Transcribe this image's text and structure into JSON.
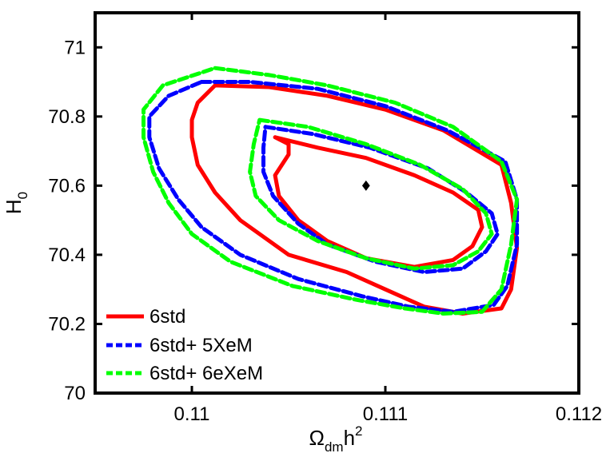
{
  "chart_data": {
    "type": "line",
    "title": "",
    "xlabel": {
      "base": "Ω",
      "sub": "dm",
      "mid": "h",
      "sup": "2"
    },
    "ylabel": {
      "base": "H",
      "sub": "0"
    },
    "xlim": [
      0.1095,
      0.112
    ],
    "ylim": [
      70.0,
      71.1
    ],
    "xticks": [
      0.11,
      0.111,
      0.112
    ],
    "xtick_labels": [
      "0.11",
      "0.111",
      "0.112"
    ],
    "yticks": [
      70.0,
      70.2,
      70.4,
      70.6,
      70.8,
      71.0
    ],
    "ytick_labels": [
      "70",
      "70.2",
      "70.4",
      "70.6",
      "70.8",
      "71"
    ],
    "grid": false,
    "legend_position": "bottom-left",
    "best_fit_point": {
      "x": 0.1109,
      "y": 70.6,
      "marker": "diamond",
      "color": "#000000"
    },
    "series": [
      {
        "name": "6std",
        "color": "#ff0000",
        "style": "solid",
        "contours": [
          {
            "level": "inner",
            "points": [
              [
                0.11043,
                70.74
              ],
              [
                0.11065,
                70.71
              ],
              [
                0.1109,
                70.68
              ],
              [
                0.11115,
                70.63
              ],
              [
                0.11135,
                70.58
              ],
              [
                0.11148,
                70.53
              ],
              [
                0.1115,
                70.48
              ],
              [
                0.11145,
                70.425
              ],
              [
                0.11135,
                70.385
              ],
              [
                0.11115,
                70.365
              ],
              [
                0.1109,
                70.39
              ],
              [
                0.1107,
                70.44
              ],
              [
                0.11055,
                70.5
              ],
              [
                0.11045,
                70.57
              ],
              [
                0.11043,
                70.63
              ],
              [
                0.1105,
                70.69
              ],
              [
                0.1105,
                70.72
              ],
              [
                0.11043,
                70.74
              ]
            ]
          },
          {
            "level": "outer",
            "points": [
              [
                0.11012,
                70.89
              ],
              [
                0.1104,
                70.885
              ],
              [
                0.1107,
                70.86
              ],
              [
                0.111,
                70.82
              ],
              [
                0.1113,
                70.76
              ],
              [
                0.1116,
                70.66
              ],
              [
                0.11165,
                70.55
              ],
              [
                0.11168,
                70.42
              ],
              [
                0.11165,
                70.3
              ],
              [
                0.1116,
                70.245
              ],
              [
                0.1114,
                70.23
              ],
              [
                0.1112,
                70.25
              ],
              [
                0.111,
                70.3
              ],
              [
                0.1108,
                70.35
              ],
              [
                0.1105,
                70.4
              ],
              [
                0.11025,
                70.5
              ],
              [
                0.11012,
                70.58
              ],
              [
                0.11003,
                70.66
              ],
              [
                0.11,
                70.74
              ],
              [
                0.11,
                70.79
              ],
              [
                0.11003,
                70.84
              ],
              [
                0.11012,
                70.89
              ]
            ]
          }
        ]
      },
      {
        "name": "6std+ 5XeM",
        "color": "#0000ff",
        "style": "dashed",
        "contours": [
          {
            "level": "inner",
            "points": [
              [
                0.11038,
                70.77
              ],
              [
                0.11062,
                70.75
              ],
              [
                0.11092,
                70.71
              ],
              [
                0.11122,
                70.65
              ],
              [
                0.11142,
                70.58
              ],
              [
                0.11155,
                70.52
              ],
              [
                0.11158,
                70.46
              ],
              [
                0.11152,
                70.41
              ],
              [
                0.1114,
                70.36
              ],
              [
                0.1112,
                70.35
              ],
              [
                0.11095,
                70.38
              ],
              [
                0.1107,
                70.43
              ],
              [
                0.11055,
                70.49
              ],
              [
                0.11042,
                70.57
              ],
              [
                0.11037,
                70.64
              ],
              [
                0.11037,
                70.71
              ],
              [
                0.11038,
                70.77
              ]
            ]
          },
          {
            "level": "outer",
            "points": [
              [
                0.11005,
                70.9
              ],
              [
                0.1103,
                70.9
              ],
              [
                0.11065,
                70.88
              ],
              [
                0.111,
                70.83
              ],
              [
                0.11132,
                70.76
              ],
              [
                0.11162,
                70.67
              ],
              [
                0.11168,
                70.56
              ],
              [
                0.11168,
                70.43
              ],
              [
                0.11163,
                70.31
              ],
              [
                0.11156,
                70.255
              ],
              [
                0.11135,
                70.235
              ],
              [
                0.11112,
                70.25
              ],
              [
                0.11088,
                70.28
              ],
              [
                0.11055,
                70.33
              ],
              [
                0.11025,
                70.4
              ],
              [
                0.11005,
                70.48
              ],
              [
                0.10993,
                70.56
              ],
              [
                0.10983,
                70.65
              ],
              [
                0.10978,
                70.74
              ],
              [
                0.10978,
                70.8
              ],
              [
                0.10988,
                70.86
              ],
              [
                0.11005,
                70.9
              ]
            ]
          }
        ]
      },
      {
        "name": "6std+ 6eXeM",
        "color": "#00ff00",
        "style": "dashed",
        "contours": [
          {
            "level": "inner",
            "points": [
              [
                0.11035,
                70.79
              ],
              [
                0.1106,
                70.77
              ],
              [
                0.1109,
                70.72
              ],
              [
                0.11118,
                70.66
              ],
              [
                0.1114,
                70.59
              ],
              [
                0.11152,
                70.52
              ],
              [
                0.11155,
                70.46
              ],
              [
                0.11148,
                70.41
              ],
              [
                0.11135,
                70.37
              ],
              [
                0.11115,
                70.36
              ],
              [
                0.1109,
                70.39
              ],
              [
                0.11065,
                70.44
              ],
              [
                0.11045,
                70.5
              ],
              [
                0.11033,
                70.57
              ],
              [
                0.1103,
                70.64
              ],
              [
                0.11032,
                70.72
              ],
              [
                0.11035,
                70.79
              ]
            ]
          },
          {
            "level": "outer",
            "points": [
              [
                0.11012,
                70.94
              ],
              [
                0.1104,
                70.92
              ],
              [
                0.1107,
                70.89
              ],
              [
                0.11105,
                70.84
              ],
              [
                0.11135,
                70.77
              ],
              [
                0.1116,
                70.67
              ],
              [
                0.11168,
                70.56
              ],
              [
                0.11165,
                70.43
              ],
              [
                0.1116,
                70.3
              ],
              [
                0.1115,
                70.235
              ],
              [
                0.1113,
                70.23
              ],
              [
                0.1111,
                70.245
              ],
              [
                0.11085,
                70.27
              ],
              [
                0.11052,
                70.31
              ],
              [
                0.1102,
                70.38
              ],
              [
                0.11,
                70.46
              ],
              [
                0.10988,
                70.55
              ],
              [
                0.1098,
                70.64
              ],
              [
                0.10975,
                70.74
              ],
              [
                0.10975,
                70.82
              ],
              [
                0.10985,
                70.89
              ],
              [
                0.11012,
                70.94
              ]
            ]
          }
        ]
      }
    ]
  }
}
